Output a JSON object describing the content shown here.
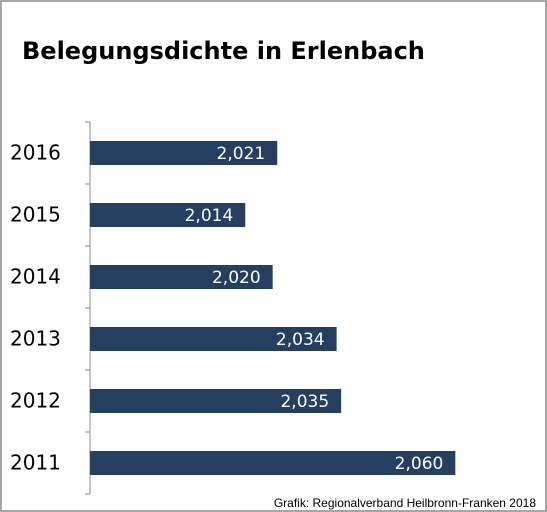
{
  "chart_data": {
    "type": "hbar",
    "title": "Belegungsdichte in Erlenbach",
    "categories": [
      "2016",
      "2015",
      "2014",
      "2013",
      "2012",
      "2011"
    ],
    "values": [
      2.021,
      2.014,
      2.02,
      2.034,
      2.035,
      2.06
    ],
    "value_labels": [
      "2,021",
      "2,014",
      "2,020",
      "2,034",
      "2,035",
      "2,060"
    ],
    "color": "#243f60",
    "xlim": [
      1.98,
      2.07
    ],
    "source": "Grafik: Regionalverband Heilbronn-Franken 2018"
  }
}
